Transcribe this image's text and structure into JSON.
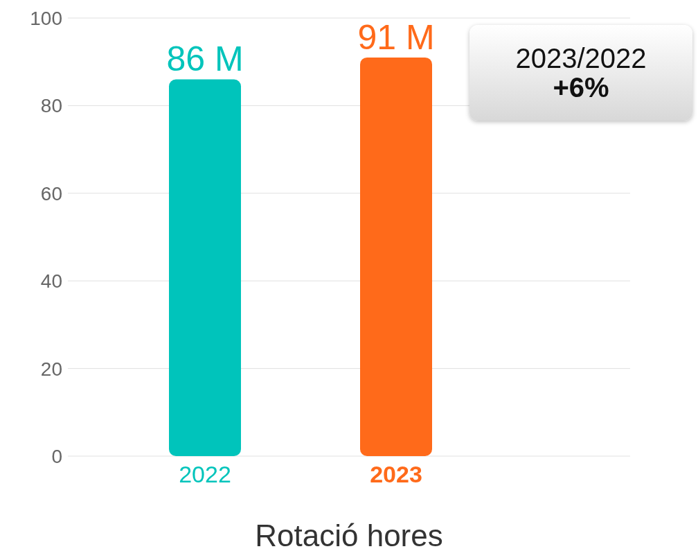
{
  "chart_data": {
    "type": "bar",
    "xlabel": "Rotació hores",
    "categories": [
      "2022",
      "2023"
    ],
    "values": [
      86,
      91
    ],
    "colors": [
      "#00c4bb",
      "#ff6a1a"
    ],
    "value_labels": [
      "86 M",
      "91 M"
    ],
    "ylim": [
      0,
      100
    ],
    "yticks": [
      0,
      20,
      40,
      60,
      80,
      100
    ],
    "grid": "y",
    "annotations": [
      "2023/2022",
      "+6%"
    ]
  }
}
